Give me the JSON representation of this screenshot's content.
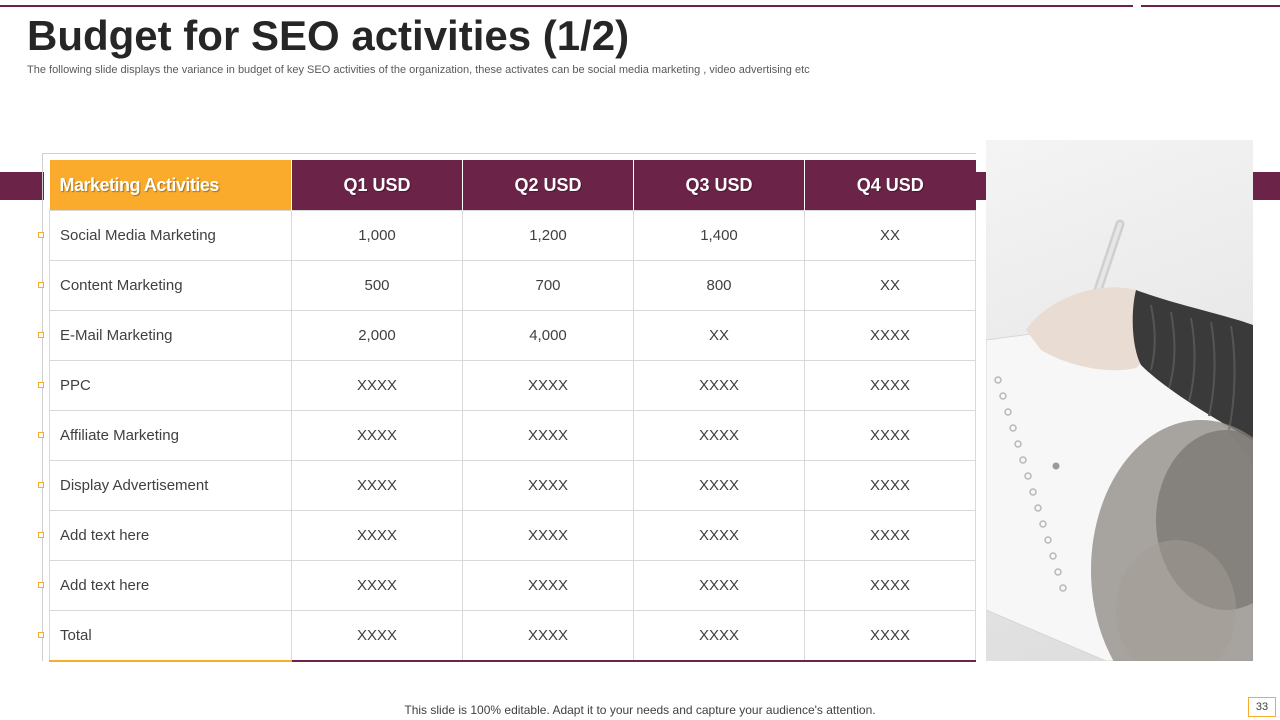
{
  "slide": {
    "title": "Budget for SEO activities (1/2)",
    "subtitle": "The following slide displays the variance in budget of key SEO  activities of the organization, these activates can be social media marketing , video advertising etc",
    "footer": "This slide is 100% editable. Adapt it to your needs and capture your audience's attention.",
    "page_number": "33"
  },
  "colors": {
    "accent_purple": "#6b2448",
    "accent_orange": "#fbab2c"
  },
  "table": {
    "headers": [
      "Marketing Activities",
      "Q1 USD",
      "Q2 USD",
      "Q3 USD",
      "Q4 USD"
    ],
    "rows": [
      [
        "Social Media Marketing",
        "1,000",
        "1,200",
        "1,400",
        "XX"
      ],
      [
        "Content Marketing",
        "500",
        "700",
        "800",
        "XX"
      ],
      [
        "E-Mail Marketing",
        "2,000",
        "4,000",
        "XX",
        "XXXX"
      ],
      [
        "PPC",
        "XXXX",
        "XXXX",
        "XXXX",
        "XXXX"
      ],
      [
        "Affiliate Marketing",
        "XXXX",
        "XXXX",
        "XXXX",
        "XXXX"
      ],
      [
        "Display Advertisement",
        "XXXX",
        "XXXX",
        "XXXX",
        "XXXX"
      ],
      [
        "Add text here",
        "XXXX",
        "XXXX",
        "XXXX",
        "XXXX"
      ],
      [
        "Add text here",
        "XXXX",
        "XXXX",
        "XXXX",
        "XXXX"
      ],
      [
        "Total",
        "XXXX",
        "XXXX",
        "XXXX",
        "XXXX"
      ]
    ]
  },
  "image": {
    "icon": "photo-person-writing-icon"
  }
}
